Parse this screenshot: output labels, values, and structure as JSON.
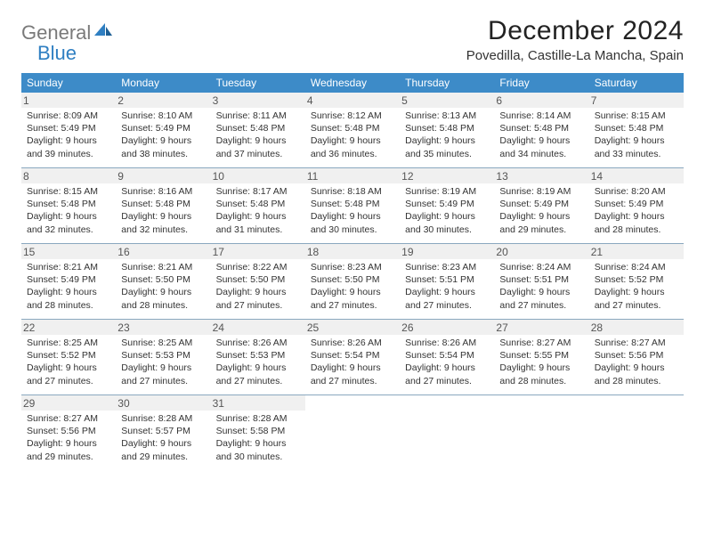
{
  "brand": {
    "part1": "General",
    "part2": "Blue"
  },
  "header": {
    "title": "December 2024",
    "location": "Povedilla, Castille-La Mancha, Spain"
  },
  "colors": {
    "header_bg": "#3d8bc8",
    "divider": "#8aa8bf",
    "daynum_bg": "#f0f0f0",
    "logo_gray": "#7a7a7a",
    "logo_blue": "#2f7fc2"
  },
  "days_of_week": [
    "Sunday",
    "Monday",
    "Tuesday",
    "Wednesday",
    "Thursday",
    "Friday",
    "Saturday"
  ],
  "weeks": [
    [
      {
        "n": "1",
        "sr": "8:09 AM",
        "ss": "5:49 PM",
        "dl": "9 hours and 39 minutes."
      },
      {
        "n": "2",
        "sr": "8:10 AM",
        "ss": "5:49 PM",
        "dl": "9 hours and 38 minutes."
      },
      {
        "n": "3",
        "sr": "8:11 AM",
        "ss": "5:48 PM",
        "dl": "9 hours and 37 minutes."
      },
      {
        "n": "4",
        "sr": "8:12 AM",
        "ss": "5:48 PM",
        "dl": "9 hours and 36 minutes."
      },
      {
        "n": "5",
        "sr": "8:13 AM",
        "ss": "5:48 PM",
        "dl": "9 hours and 35 minutes."
      },
      {
        "n": "6",
        "sr": "8:14 AM",
        "ss": "5:48 PM",
        "dl": "9 hours and 34 minutes."
      },
      {
        "n": "7",
        "sr": "8:15 AM",
        "ss": "5:48 PM",
        "dl": "9 hours and 33 minutes."
      }
    ],
    [
      {
        "n": "8",
        "sr": "8:15 AM",
        "ss": "5:48 PM",
        "dl": "9 hours and 32 minutes."
      },
      {
        "n": "9",
        "sr": "8:16 AM",
        "ss": "5:48 PM",
        "dl": "9 hours and 32 minutes."
      },
      {
        "n": "10",
        "sr": "8:17 AM",
        "ss": "5:48 PM",
        "dl": "9 hours and 31 minutes."
      },
      {
        "n": "11",
        "sr": "8:18 AM",
        "ss": "5:48 PM",
        "dl": "9 hours and 30 minutes."
      },
      {
        "n": "12",
        "sr": "8:19 AM",
        "ss": "5:49 PM",
        "dl": "9 hours and 30 minutes."
      },
      {
        "n": "13",
        "sr": "8:19 AM",
        "ss": "5:49 PM",
        "dl": "9 hours and 29 minutes."
      },
      {
        "n": "14",
        "sr": "8:20 AM",
        "ss": "5:49 PM",
        "dl": "9 hours and 28 minutes."
      }
    ],
    [
      {
        "n": "15",
        "sr": "8:21 AM",
        "ss": "5:49 PM",
        "dl": "9 hours and 28 minutes."
      },
      {
        "n": "16",
        "sr": "8:21 AM",
        "ss": "5:50 PM",
        "dl": "9 hours and 28 minutes."
      },
      {
        "n": "17",
        "sr": "8:22 AM",
        "ss": "5:50 PM",
        "dl": "9 hours and 27 minutes."
      },
      {
        "n": "18",
        "sr": "8:23 AM",
        "ss": "5:50 PM",
        "dl": "9 hours and 27 minutes."
      },
      {
        "n": "19",
        "sr": "8:23 AM",
        "ss": "5:51 PM",
        "dl": "9 hours and 27 minutes."
      },
      {
        "n": "20",
        "sr": "8:24 AM",
        "ss": "5:51 PM",
        "dl": "9 hours and 27 minutes."
      },
      {
        "n": "21",
        "sr": "8:24 AM",
        "ss": "5:52 PM",
        "dl": "9 hours and 27 minutes."
      }
    ],
    [
      {
        "n": "22",
        "sr": "8:25 AM",
        "ss": "5:52 PM",
        "dl": "9 hours and 27 minutes."
      },
      {
        "n": "23",
        "sr": "8:25 AM",
        "ss": "5:53 PM",
        "dl": "9 hours and 27 minutes."
      },
      {
        "n": "24",
        "sr": "8:26 AM",
        "ss": "5:53 PM",
        "dl": "9 hours and 27 minutes."
      },
      {
        "n": "25",
        "sr": "8:26 AM",
        "ss": "5:54 PM",
        "dl": "9 hours and 27 minutes."
      },
      {
        "n": "26",
        "sr": "8:26 AM",
        "ss": "5:54 PM",
        "dl": "9 hours and 27 minutes."
      },
      {
        "n": "27",
        "sr": "8:27 AM",
        "ss": "5:55 PM",
        "dl": "9 hours and 28 minutes."
      },
      {
        "n": "28",
        "sr": "8:27 AM",
        "ss": "5:56 PM",
        "dl": "9 hours and 28 minutes."
      }
    ],
    [
      {
        "n": "29",
        "sr": "8:27 AM",
        "ss": "5:56 PM",
        "dl": "9 hours and 29 minutes."
      },
      {
        "n": "30",
        "sr": "8:28 AM",
        "ss": "5:57 PM",
        "dl": "9 hours and 29 minutes."
      },
      {
        "n": "31",
        "sr": "8:28 AM",
        "ss": "5:58 PM",
        "dl": "9 hours and 30 minutes."
      },
      null,
      null,
      null,
      null
    ]
  ],
  "labels": {
    "sunrise": "Sunrise:",
    "sunset": "Sunset:",
    "daylight": "Daylight:"
  }
}
